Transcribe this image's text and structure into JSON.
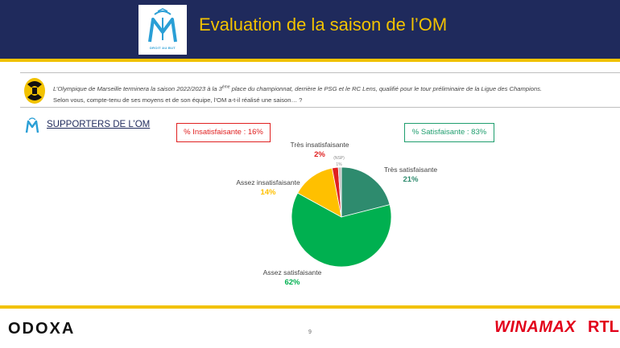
{
  "header": {
    "title": "Evaluation de la saison de l’OM",
    "logo_caption": "DROIT AU BUT"
  },
  "question": {
    "line1_start": "L’Olympique de Marseille terminera la saison 2022/2023 à la 3",
    "line1_sup": "ème",
    "line1_end": " place du championnat, derrière le PSG et le RC Lens, qualifié pour le tour préliminaire de la Ligue des Champions.",
    "line2": "Selon vous, compte-tenu de ses moyens et de son équipe, l’OM a-t-il réalisé une saison… ?"
  },
  "section": {
    "label": "SUPPORTERS DE L’OM"
  },
  "kpis": {
    "insatisfaisante": "% Insatisfaisante : 16%",
    "satisfaisante": "% Satisfaisante : 83%"
  },
  "chart_data": {
    "type": "pie",
    "slices": [
      {
        "label": "Très satisfaisante",
        "value": 21,
        "display": "21%",
        "color": "#2e8b6e"
      },
      {
        "label": "Assez satisfaisante",
        "value": 62,
        "display": "62%",
        "color": "#00b050"
      },
      {
        "label": "Assez insatisfaisante",
        "value": 14,
        "display": "14%",
        "color": "#ffc000"
      },
      {
        "label": "Très insatisfaisante",
        "value": 2,
        "display": "2%",
        "color": "#e02020"
      },
      {
        "label": "(NSP)",
        "value": 1,
        "display": "1%",
        "color": "#bfbfbf"
      }
    ]
  },
  "footer": {
    "brand": "ODOXA",
    "page": "9",
    "partner1": "WINAMAX",
    "partner2": "RTL"
  },
  "colors": {
    "header_bg": "#1f2a5c",
    "accent": "#f2c200",
    "negative": "#e02020",
    "positive": "#1f9e6e"
  }
}
